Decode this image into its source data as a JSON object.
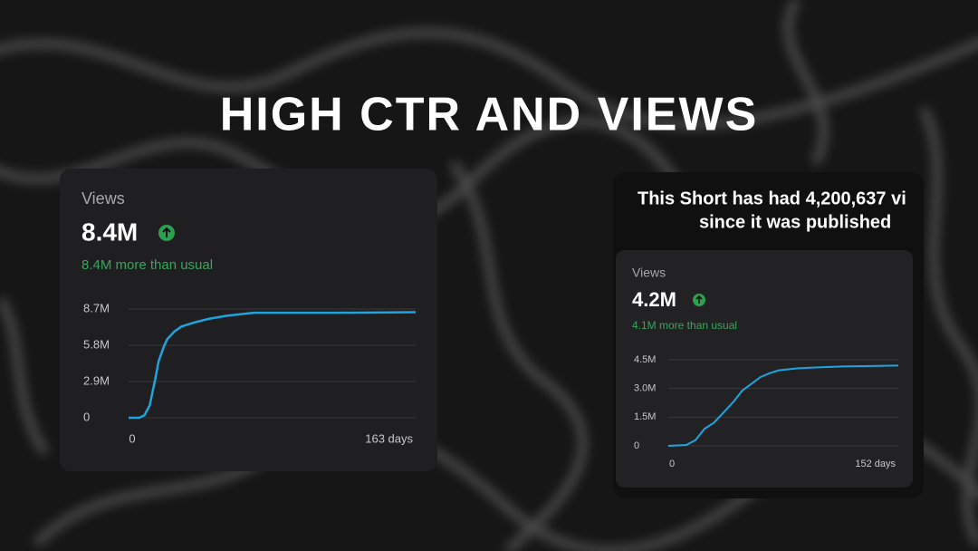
{
  "heading": "HIGH CTR AND VIEWS",
  "short_message": [
    "This Short has had 4,200,637 vi",
    "since it was published"
  ],
  "chart_data": [
    {
      "type": "line",
      "label": "Views",
      "headline": "8.4M",
      "note": "8.4M more than usual",
      "x": [
        0,
        6,
        9,
        12,
        15,
        17,
        20,
        22,
        26,
        30,
        38,
        45,
        55,
        71,
        118,
        163
      ],
      "values": [
        0,
        0,
        200000,
        1000000,
        3000000,
        4500000,
        5700000,
        6300000,
        6900000,
        7300000,
        7650000,
        7900000,
        8150000,
        8400000,
        8400000,
        8450000
      ],
      "color": "#1ea5e0",
      "xlim": [
        0,
        163
      ],
      "xticks": [
        0,
        {
          "value": 163,
          "label": "163 days"
        }
      ],
      "ylim": [
        0,
        8700000
      ],
      "yticks": [
        0,
        {
          "value": 2900000,
          "label": "2.9M"
        },
        {
          "value": 5800000,
          "label": "5.8M"
        },
        {
          "value": 8700000,
          "label": "8.7M"
        }
      ],
      "grid": true
    },
    {
      "type": "line",
      "label": "Views",
      "headline": "4.2M",
      "note": "4.1M more than usual",
      "x": [
        0,
        12,
        18,
        24,
        30,
        36,
        43,
        49,
        55,
        61,
        67,
        73,
        85,
        97,
        115,
        152
      ],
      "values": [
        0,
        50000,
        300000,
        900000,
        1200000,
        1700000,
        2300000,
        2900000,
        3250000,
        3600000,
        3800000,
        3950000,
        4050000,
        4100000,
        4150000,
        4200000
      ],
      "color": "#1ea5e0",
      "xlim": [
        0,
        152
      ],
      "xticks": [
        0,
        {
          "value": 152,
          "label": "152 days"
        }
      ],
      "ylim": [
        0,
        4500000
      ],
      "yticks": [
        0,
        {
          "value": 1500000,
          "label": "1.5M"
        },
        {
          "value": 3000000,
          "label": "3.0M"
        },
        {
          "value": 4500000,
          "label": "4.5M"
        }
      ],
      "grid": true
    }
  ]
}
